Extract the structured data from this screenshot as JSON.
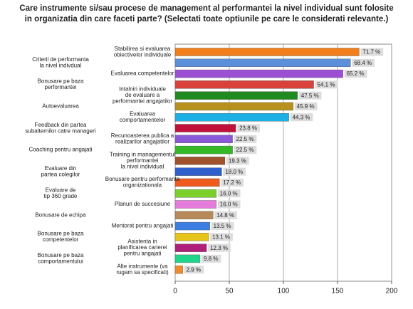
{
  "chart_data": {
    "type": "bar",
    "orientation": "horizontal",
    "title": [
      "Care instrumente si/sau procese de management al performantei la nivel individual sunt folosite",
      "in organizatia din care faceti parte? (Selectati toate optiunile pe care le considerati relevante.)"
    ],
    "categories": [
      "Stabilirea si evaluarea\nobiectivelor individuale",
      "Criterii de performanta\nla nivel indivdual",
      "Evaluarea competentelor",
      "Bonusare pe baza\nperformantei",
      "Intalniri individuale\nde evaluare a\nperformantei angajatilor",
      "Autoevaluarea",
      "Evaluarea\ncomportamentelor",
      "Feedback din partea\nsubalternilor catre manageri",
      "Recunoasterea publica a\nrealizarilor angajatilor",
      "Coaching pentru angajati",
      "Training in managementul\nperformantei\nla nivel individual",
      "Evaluare din\npartea colegilor",
      "Bonusare pentru performanta\norganizationala",
      "Evaluare de\ntip 360 grade",
      "Planuri de succesiune",
      "Bonusare de echipa",
      "Mentorat pentru angajati",
      "Bonusare pe baza\ncompetentelor",
      "Asistenta in\nplanificarea carierei\npentru angajati",
      "Bonusare pe baza\ncomportamentului",
      "Alte instrumente (va\nrugam sa specificati)"
    ],
    "values": [
      170,
      162,
      155,
      128,
      113,
      109,
      105,
      56,
      53,
      53,
      46,
      43,
      41,
      38,
      38,
      35,
      32,
      31,
      29,
      23,
      7
    ],
    "value_labels": [
      "71.7 %",
      "68.4 %",
      "65.2 %",
      "54.1 %",
      "47.5 %",
      "45.9 %",
      "44.3 %",
      "23.8 %",
      "22.5 %",
      "22.5 %",
      "19.3 %",
      "18.0 %",
      "17.2 %",
      "16.0 %",
      "16.0 %",
      "14.8 %",
      "13.5 %",
      "13.1 %",
      "12.3 %",
      "9.8 %",
      "2.9 %"
    ],
    "colors": [
      "#f07f1c",
      "#5b8fd9",
      "#9d4fd4",
      "#d9423a",
      "#1f8a1f",
      "#b8901c",
      "#1bb0e6",
      "#c0103a",
      "#8a58d6",
      "#35b825",
      "#a0522d",
      "#2f5fcc",
      "#ef5a1e",
      "#7bd02c",
      "#e57cdb",
      "#b88a5a",
      "#3b7de0",
      "#e6c419",
      "#b0207a",
      "#20d68a",
      "#f08a2a"
    ],
    "xlim": [
      0,
      200
    ],
    "xticks": [
      0,
      50,
      100,
      150,
      200
    ],
    "grid": true
  }
}
